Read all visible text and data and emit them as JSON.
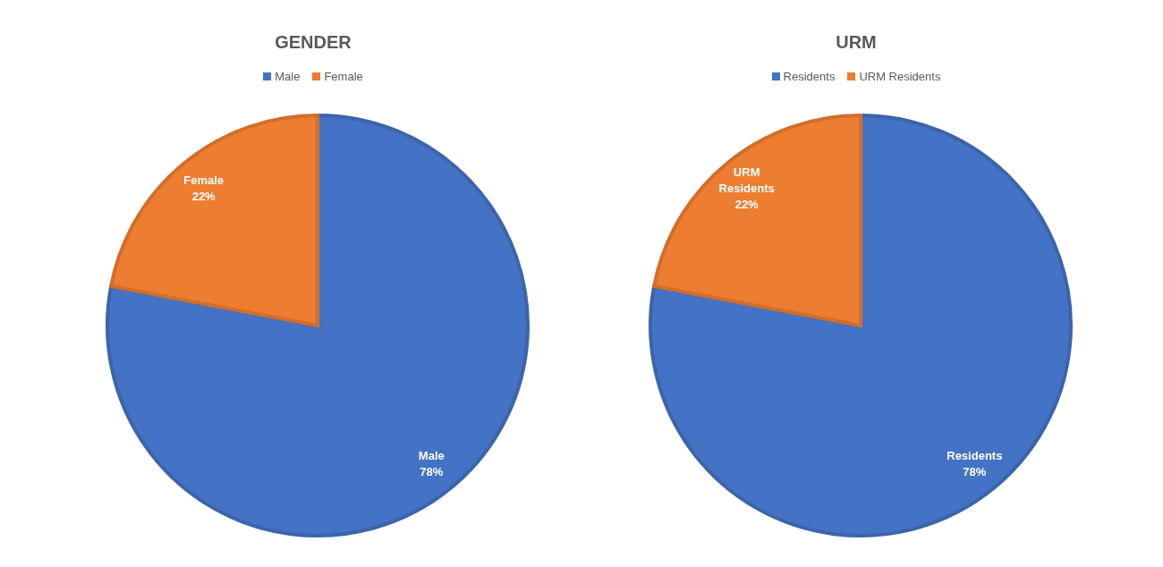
{
  "chart_data": [
    {
      "type": "pie",
      "title": "GENDER",
      "categories": [
        "Male",
        "Female"
      ],
      "values": [
        78,
        22
      ],
      "colors": [
        "#4472c4",
        "#ed7d31"
      ],
      "value_labels": [
        "78%",
        "22%"
      ],
      "legend": "top"
    },
    {
      "type": "pie",
      "title": "URM",
      "categories": [
        "Residents",
        "URM Residents"
      ],
      "values": [
        78,
        22
      ],
      "colors": [
        "#4472c4",
        "#ed7d31"
      ],
      "value_labels": [
        "78%",
        "22%"
      ],
      "legend": "top"
    }
  ]
}
